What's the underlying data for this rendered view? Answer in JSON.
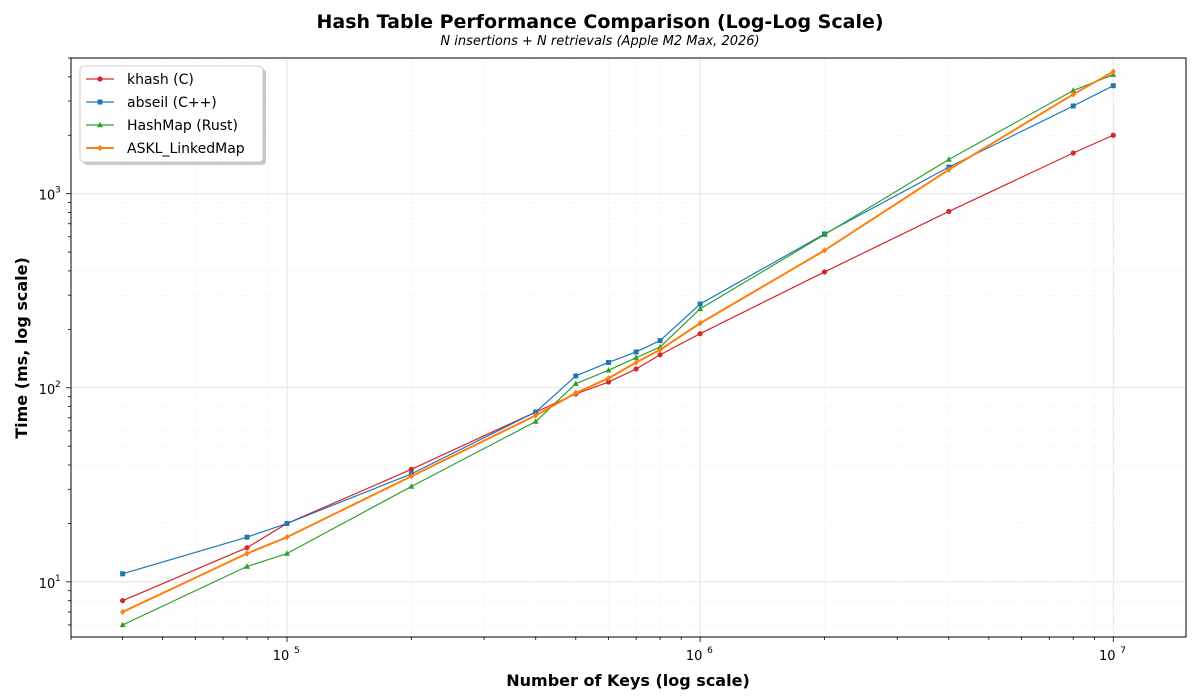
{
  "chart_data": {
    "type": "line",
    "title": "Hash Table Performance Comparison (Log-Log Scale)",
    "subtitle": "N insertions + N retrievals (Apple M2 Max, 2026)",
    "xlabel": "Number of Keys (log scale)",
    "ylabel": "Time (ms, log scale)",
    "x_scale": "log",
    "y_scale": "log",
    "xlim": [
      30000,
      15000000
    ],
    "ylim": [
      5.2,
      5000
    ],
    "grid": true,
    "legend_position": "top-left",
    "x_ticks": [
      {
        "value": 100000,
        "base": "10",
        "exp": "5"
      },
      {
        "value": 1000000,
        "base": "10",
        "exp": "6"
      },
      {
        "value": 10000000,
        "base": "10",
        "exp": "7"
      }
    ],
    "y_ticks": [
      {
        "value": 10,
        "base": "10",
        "exp": "1"
      },
      {
        "value": 100,
        "base": "10",
        "exp": "2"
      },
      {
        "value": 1000,
        "base": "10",
        "exp": "3"
      }
    ],
    "series": [
      {
        "name": "khash (C)",
        "color": "#d62728",
        "marker": "circle",
        "x": [
          40000,
          80000,
          100000,
          200000,
          400000,
          500000,
          600000,
          700000,
          800000,
          1000000,
          2000000,
          4000000,
          8000000,
          10000000
        ],
        "values": [
          8,
          15,
          20,
          38,
          75,
          93,
          107,
          125,
          148,
          190,
          395,
          810,
          1620,
          2000
        ]
      },
      {
        "name": "abseil (C++)",
        "color": "#1f77b4",
        "marker": "square",
        "x": [
          40000,
          80000,
          100000,
          200000,
          400000,
          500000,
          600000,
          700000,
          800000,
          1000000,
          2000000,
          4000000,
          8000000,
          10000000
        ],
        "values": [
          11,
          17,
          20,
          36,
          75,
          115,
          135,
          153,
          175,
          270,
          620,
          1370,
          2830,
          3600
        ]
      },
      {
        "name": "HashMap (Rust)",
        "color": "#2ca02c",
        "marker": "triangle",
        "x": [
          40000,
          80000,
          100000,
          200000,
          400000,
          500000,
          600000,
          700000,
          800000,
          1000000,
          2000000,
          4000000,
          8000000,
          10000000
        ],
        "values": [
          6,
          12,
          14,
          31,
          67,
          105,
          123,
          143,
          162,
          255,
          615,
          1500,
          3400,
          4100
        ]
      },
      {
        "name": "ASKL_LinkedMap",
        "color": "#ff7f0e",
        "marker": "diamond",
        "x": [
          40000,
          80000,
          100000,
          200000,
          400000,
          500000,
          600000,
          700000,
          800000,
          1000000,
          2000000,
          4000000,
          8000000,
          10000000
        ],
        "values": [
          7,
          14,
          17,
          35,
          72,
          94,
          112,
          135,
          157,
          215,
          510,
          1330,
          3250,
          4250
        ]
      }
    ]
  }
}
